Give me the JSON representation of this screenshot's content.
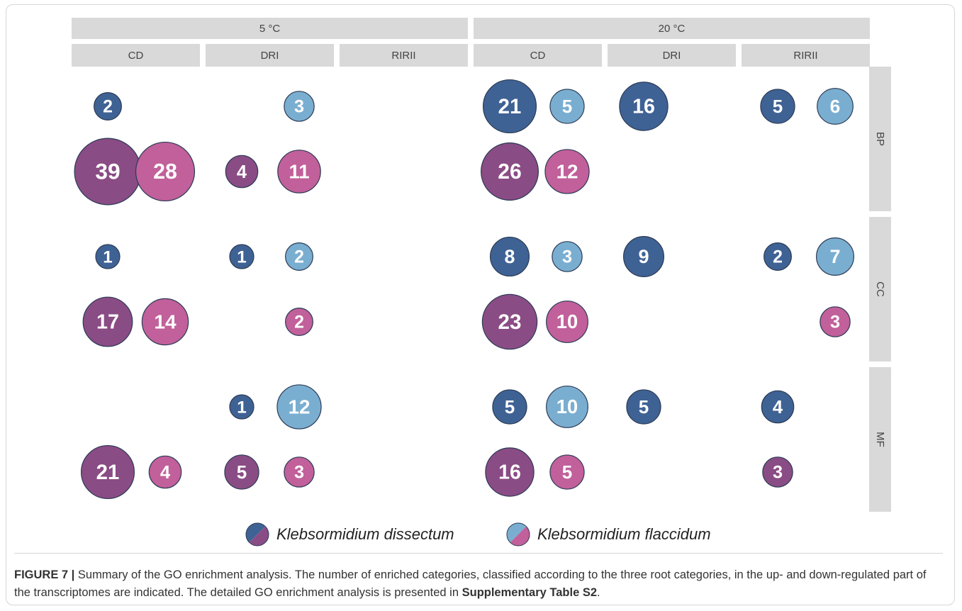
{
  "chart_data": {
    "type": "bubble_grid",
    "temperatures": [
      "5 °C",
      "20 °C"
    ],
    "comparisons": [
      "CD",
      "DRI",
      "RIRII"
    ],
    "root_categories": [
      "BP",
      "CC",
      "MF"
    ],
    "series": [
      {
        "name": "Klebsormidium dissectum",
        "colors": [
          "#3f6294",
          "#8a4c85"
        ],
        "values": [
          [
            [
              2,
              39
            ],
            [
              null,
              4
            ],
            [
              null,
              null
            ],
            [
              21,
              26
            ],
            [
              16,
              null
            ],
            [
              5,
              null
            ]
          ],
          [
            [
              1,
              17
            ],
            [
              1,
              null
            ],
            [
              null,
              null
            ],
            [
              8,
              23
            ],
            [
              9,
              null
            ],
            [
              2,
              null
            ]
          ],
          [
            [
              null,
              21
            ],
            [
              1,
              5
            ],
            [
              null,
              null
            ],
            [
              5,
              16
            ],
            [
              5,
              null
            ],
            [
              4,
              3
            ]
          ]
        ]
      },
      {
        "name": "Klebsormidium flaccidum",
        "colors": [
          "#7aaed1",
          "#c1609b"
        ],
        "values": [
          [
            [
              null,
              28
            ],
            [
              3,
              11
            ],
            [
              null,
              null
            ],
            [
              5,
              12
            ],
            [
              null,
              null
            ],
            [
              6,
              null
            ]
          ],
          [
            [
              null,
              14
            ],
            [
              2,
              2
            ],
            [
              null,
              null
            ],
            [
              3,
              10
            ],
            [
              null,
              null
            ],
            [
              7,
              3
            ]
          ],
          [
            [
              null,
              4
            ],
            [
              12,
              3
            ],
            [
              null,
              null
            ],
            [
              10,
              5
            ],
            [
              null,
              null
            ],
            [
              null,
              null
            ]
          ]
        ]
      }
    ]
  },
  "caption": {
    "label": "FIGURE 7 |",
    "text": " Summary of the GO enrichment analysis. The number of enriched categories, classified according to the three root categories, in the up- and down-regulated part of the transcriptomes are indicated. The detailed GO enrichment analysis is presented in ",
    "bold": "Supplementary Table S2",
    "end": "."
  }
}
